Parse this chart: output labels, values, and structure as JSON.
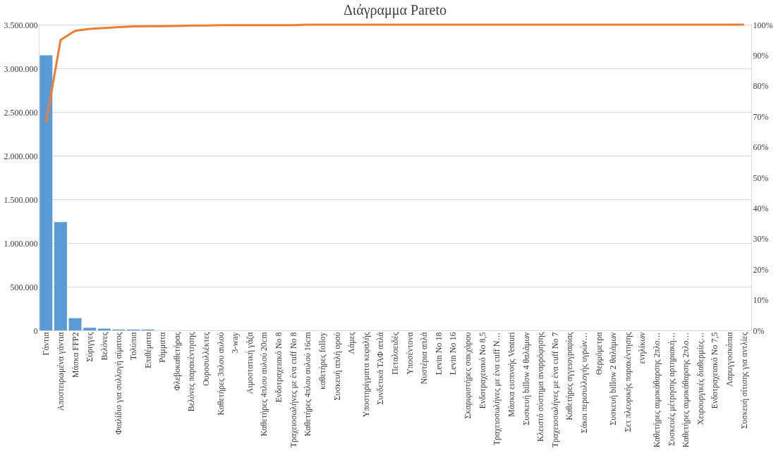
{
  "chart_data": {
    "type": "bar",
    "title": "Διάγραμμα Pareto",
    "categories": [
      "Γάντια",
      "Αποστειρωμένα γάντια",
      "Μάσκα FFP2",
      "Σύριγγες",
      "Βελόνες",
      "Φιαλίδιο για συλλογή αίματος",
      "Τολύπια",
      "Επιθέματα",
      "Ράμματα",
      "Φλεβοκαθετήρας",
      "Βελόνες παρακέντησης",
      "Ουροσυλλέκτες",
      "Καθετήρες 3πλου αυλού",
      "3-way",
      "Αιμοστατική γάζα",
      "Καθετήρες 4πλου αυλού 20cm",
      "Ενδοτραχειακό No 8",
      "Τραχειοσωλήνες με ένα cuff No 8",
      "Καθετήρες 4πλου αυλού 16cm",
      "καθετήρες folloy",
      "Συσκευή απλή ορού",
      "Λάμες",
      "Υποστηρίγματα κεφαλής",
      "Συνδετικά ΤΑΦ απλά",
      "Πεταλοειδές",
      "Υποσέντονα",
      "Νυστέρια απλά",
      "Levin No 18",
      "Levin No 16",
      "Σκαριφιστήρες σακχάρου",
      "Ενδοτραχειακό No 8,5",
      "Τραχειοσωλήνες με ένα cuff N…",
      "Μάσκα εισπνοής Venturi",
      "Συσκευή billow 4 θαλάμων",
      "Κλειστό σύστημα αναρρόφησης",
      "Τραχειοσωλήνες με ένα cuff No 7",
      "Καθετήρες αγγειογραφίας",
      "Σάκοι περισυλλογής υγρών…",
      "Θερμόμετρα",
      "Συσκευή billow 2 θαλάμων",
      "Σετ πλευρικής παρακέντησης",
      "ενηλίκων",
      "Καθετήρες αιμοκάθαρσης 2πλο…",
      "Συσκευές μέτρησης αρτηριακή…",
      "Καθετήρες αιμοκάθαρσης 2πλο…",
      "Χειρουργικές διαθερμίες…",
      "Ενδοτραχειακό No 7,5",
      "Λαρυγγοσκόπια",
      "Συσκευή σίτισης για αντλίες"
    ],
    "series": [
      {
        "color": "#5b9bd5",
        "values": [
          3150000,
          1240000,
          140000,
          30000,
          20000,
          10000,
          10000,
          10000,
          0,
          0,
          0,
          0,
          0,
          0,
          0,
          0,
          0,
          0,
          0,
          0,
          0,
          0,
          0,
          0,
          0,
          0,
          0,
          0,
          0,
          0,
          0,
          0,
          0,
          0,
          0,
          0,
          0,
          0,
          0,
          0,
          0,
          0,
          0,
          0,
          0,
          0,
          0,
          0,
          0
        ]
      },
      {
        "type": "line",
        "axis": "y2",
        "color": "#ed7d31",
        "values": [
          68,
          95,
          98,
          98.6,
          98.9,
          99.2,
          99.4,
          99.5,
          99.5,
          99.6,
          99.7,
          99.7,
          99.8,
          99.8,
          99.8,
          99.8,
          99.8,
          99.8,
          100,
          100,
          100,
          100,
          100,
          100,
          100,
          100,
          100,
          100,
          100,
          100,
          100,
          100,
          100,
          100,
          100,
          100,
          100,
          100,
          100,
          100,
          100,
          100,
          100,
          100,
          100,
          100,
          100,
          100,
          100
        ]
      }
    ],
    "ylim": [
      0,
      3500000
    ],
    "yticks": [
      {
        "value": 0,
        "label": "0"
      },
      {
        "value": 500000,
        "label": "500.000"
      },
      {
        "value": 1000000,
        "label": "1.000.000"
      },
      {
        "value": 1500000,
        "label": "1.500.000"
      },
      {
        "value": 2000000,
        "label": "2.000.000"
      },
      {
        "value": 2500000,
        "label": "2.500.000"
      },
      {
        "value": 3000000,
        "label": "3.000.000"
      },
      {
        "value": 3500000,
        "label": "3.500.000"
      }
    ],
    "y2lim": [
      0,
      100
    ],
    "y2ticks": [
      {
        "value": 0,
        "label": "0%"
      },
      {
        "value": 10,
        "label": "10%"
      },
      {
        "value": 20,
        "label": "20%"
      },
      {
        "value": 30,
        "label": "30%"
      },
      {
        "value": 40,
        "label": "40%"
      },
      {
        "value": 50,
        "label": "50%"
      },
      {
        "value": 60,
        "label": "60%"
      },
      {
        "value": 70,
        "label": "70%"
      },
      {
        "value": 80,
        "label": "80%"
      },
      {
        "value": 90,
        "label": "90%"
      },
      {
        "value": 100,
        "label": "100%"
      }
    ],
    "grid": "y",
    "legend": false,
    "marker": "none",
    "line_style": "solid"
  }
}
